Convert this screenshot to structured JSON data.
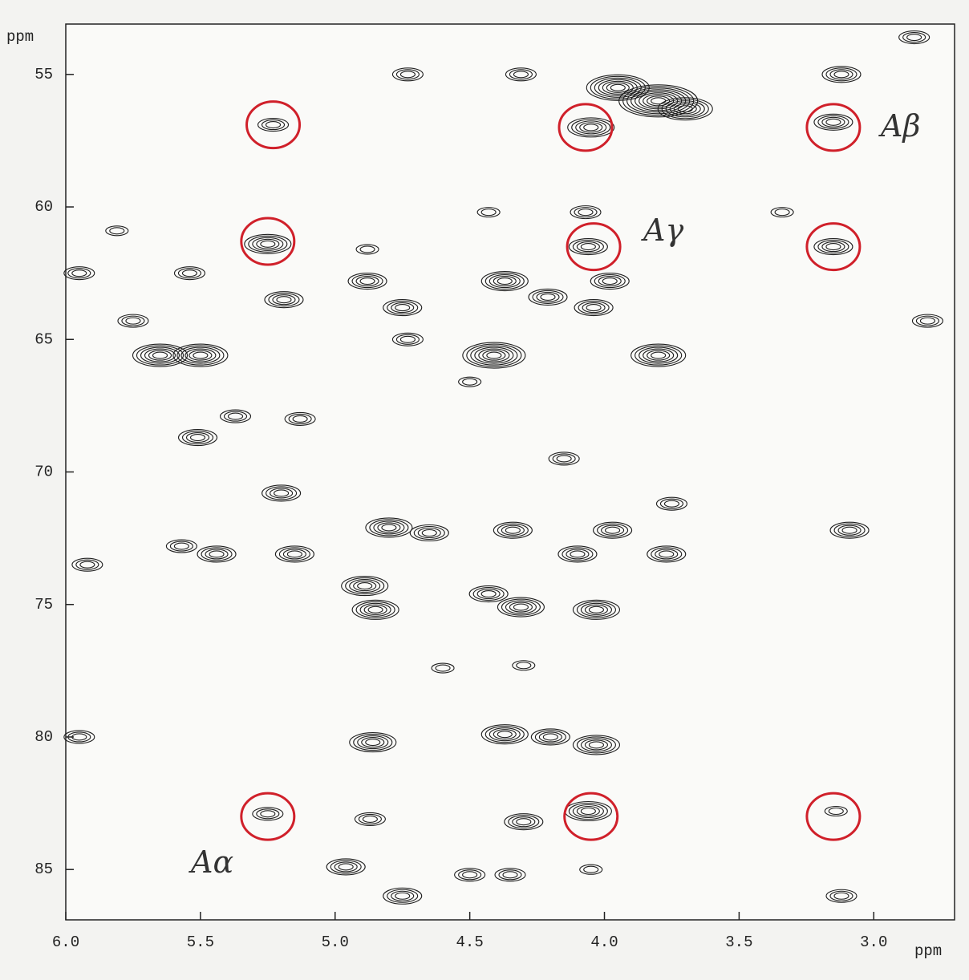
{
  "chart_data": {
    "type": "contour",
    "x_label": "ppm",
    "y_label": "ppm",
    "xlim": [
      6.0,
      2.7
    ],
    "ylim": [
      53.1,
      86.9
    ],
    "y_inverted": true,
    "xticks": [
      {
        "value": 6.0,
        "label": "6.0"
      },
      5.5,
      {
        "value": 5.0,
        "label": "5.0"
      },
      4.5,
      {
        "value": 4.0,
        "label": "4.0"
      },
      3.5,
      {
        "value": 3.0,
        "label": "3.0"
      }
    ],
    "yticks": [
      55,
      60,
      65,
      70,
      75,
      80,
      85
    ],
    "contour_color": "#1e1e1e",
    "circle_color": "#d0202a",
    "peaks": {
      "x": [
        3.8,
        4.05,
        3.15,
        5.23,
        4.73,
        4.31,
        3.12,
        2.85,
        4.07,
        4.43,
        3.34,
        5.25,
        4.06,
        3.15,
        5.81,
        4.88,
        5.95,
        5.54,
        4.88,
        4.37,
        4.21,
        5.19,
        4.75,
        4.04,
        3.98,
        5.75,
        2.8,
        5.65,
        5.5,
        4.41,
        3.8,
        4.73,
        4.5,
        5.51,
        5.37,
        5.13,
        5.2,
        5.44,
        5.15,
        5.57,
        4.8,
        4.65,
        4.89,
        4.85,
        4.43,
        4.31,
        4.03,
        4.1,
        3.77,
        4.34,
        3.97,
        3.75,
        4.15,
        3.09,
        5.92,
        4.6,
        4.3,
        4.86,
        4.37,
        4.03,
        4.2,
        5.95,
        5.25,
        4.06,
        3.14,
        4.3,
        4.87,
        4.96,
        4.5,
        4.05,
        4.75,
        3.12,
        4.35,
        3.95,
        3.7
      ],
      "y": [
        56.0,
        57.0,
        56.8,
        56.9,
        55.0,
        55.0,
        55.0,
        53.6,
        60.2,
        60.2,
        60.2,
        61.4,
        61.5,
        61.5,
        60.9,
        61.6,
        62.5,
        62.5,
        62.8,
        62.8,
        63.4,
        63.5,
        63.8,
        63.8,
        62.8,
        64.3,
        64.3,
        65.6,
        65.6,
        65.6,
        65.6,
        65.0,
        66.6,
        68.7,
        67.9,
        68.0,
        70.8,
        73.1,
        73.1,
        72.8,
        72.1,
        72.3,
        74.3,
        75.2,
        74.6,
        75.1,
        75.2,
        73.1,
        73.1,
        72.2,
        72.2,
        71.2,
        69.5,
        72.2,
        73.5,
        77.4,
        77.3,
        80.2,
        79.9,
        80.3,
        80.0,
        80.0,
        82.9,
        82.8,
        82.8,
        83.2,
        83.1,
        84.9,
        85.2,
        85.0,
        86.0,
        86.0,
        85.2,
        55.5,
        56.3
      ],
      "levels": [
        9,
        5,
        4,
        3,
        3,
        3,
        4,
        3,
        3,
        2,
        2,
        5,
        4,
        4,
        2,
        2,
        3,
        3,
        4,
        5,
        4,
        4,
        4,
        4,
        4,
        3,
        3,
        6,
        6,
        7,
        6,
        3,
        2,
        4,
        3,
        3,
        4,
        4,
        4,
        3,
        5,
        4,
        5,
        5,
        4,
        5,
        5,
        4,
        4,
        4,
        4,
        3,
        3,
        4,
        3,
        2,
        2,
        5,
        5,
        5,
        4,
        3,
        3,
        5,
        2,
        4,
        3,
        4,
        3,
        2,
        4,
        3,
        3,
        7,
        6
      ]
    },
    "circled_peaks": {
      "x": [
        5.23,
        4.07,
        3.15,
        5.25,
        4.04,
        3.15,
        5.25,
        4.05,
        3.15
      ],
      "y": [
        56.9,
        57.0,
        57.0,
        61.3,
        61.5,
        61.5,
        83.0,
        83.0,
        83.0
      ]
    },
    "annotations": [
      "Aβ",
      "Aγ",
      "Aα"
    ]
  }
}
